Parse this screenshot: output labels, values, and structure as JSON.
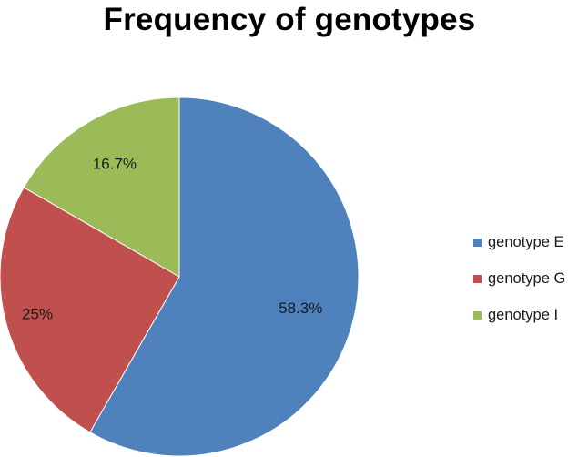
{
  "chart_data": {
    "type": "pie",
    "title": "Frequency of genotypes",
    "legend_position": "right",
    "slices": [
      {
        "name": "genotype E",
        "value": 58.3,
        "label": "58.3%",
        "color": "#4f81bd"
      },
      {
        "name": "genotype G",
        "value": 25,
        "label": "25%",
        "color": "#c0504d"
      },
      {
        "name": "genotype I",
        "value": 16.7,
        "label": "16.7%",
        "color": "#9bbb59"
      }
    ]
  }
}
